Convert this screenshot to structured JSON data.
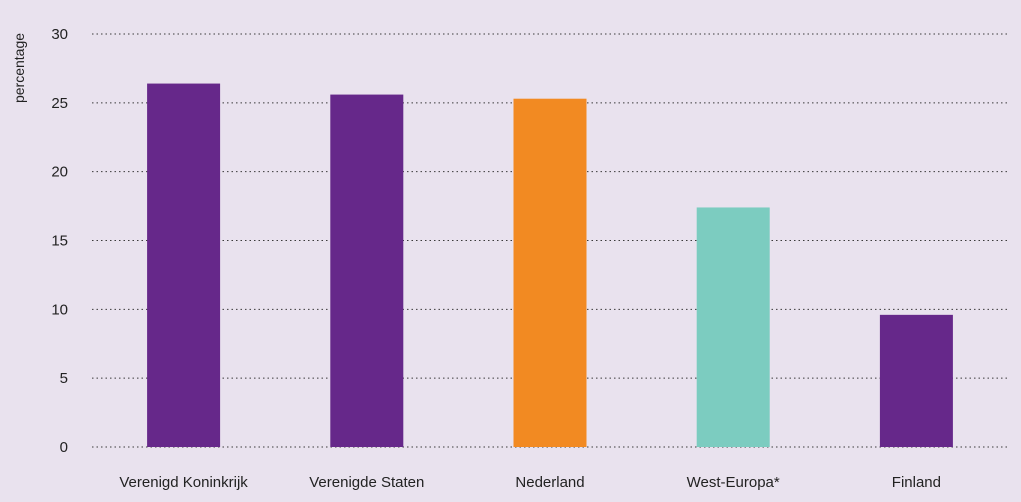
{
  "chart_data": {
    "type": "bar",
    "title": "",
    "xlabel": "",
    "ylabel": "percentage",
    "categories": [
      "Verenigd Koninkrijk",
      "Verenigde Staten",
      "Nederland",
      "West-Europa*",
      "Finland"
    ],
    "values": [
      26.4,
      25.6,
      25.3,
      17.4,
      9.6
    ],
    "colors": [
      "#66288a",
      "#66288a",
      "#f28a22",
      "#7cccc0",
      "#66288a"
    ],
    "ylim": [
      0,
      30
    ],
    "yticks": [
      0,
      5,
      10,
      15,
      20,
      25,
      30
    ],
    "grid": true,
    "legend": "none"
  },
  "colors": {
    "background": "#e9e2ee",
    "accent": "#66288a"
  }
}
